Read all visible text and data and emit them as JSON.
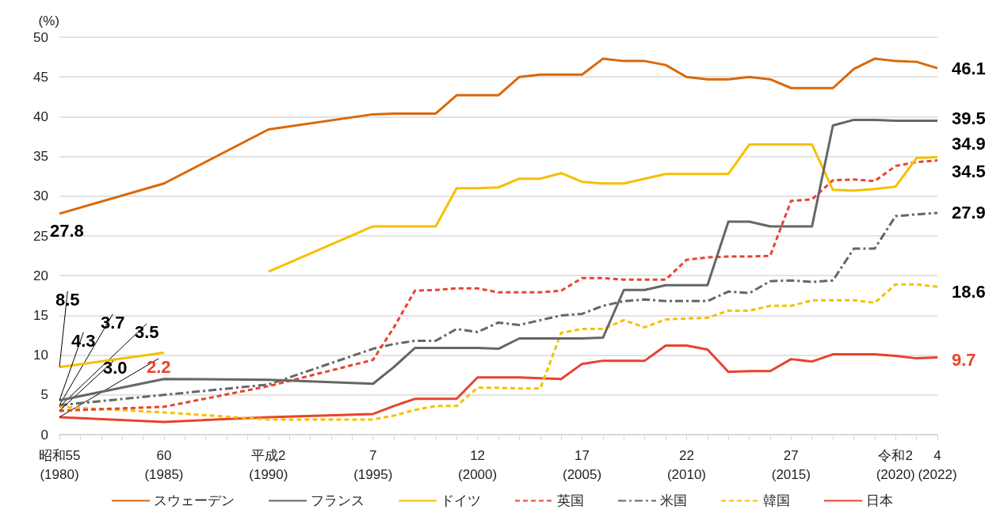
{
  "chart_data": {
    "type": "line",
    "ylabel": "(%)",
    "x": [
      "1980",
      "1985",
      "1990",
      "1995",
      "1996",
      "1997",
      "1998",
      "1999",
      "2000",
      "2001",
      "2002",
      "2003",
      "2004",
      "2005",
      "2006",
      "2007",
      "2008",
      "2009",
      "2010",
      "2011",
      "2012",
      "2013",
      "2014",
      "2015",
      "2016",
      "2017",
      "2018",
      "2019",
      "2020",
      "2021",
      "2022"
    ],
    "xlim": [
      "1980",
      "2022"
    ],
    "xticks": [
      {
        "value": "1980",
        "label": "昭和55\n(1980)"
      },
      {
        "value": "1985",
        "label": "60\n(1985)"
      },
      {
        "value": "1990",
        "label": "平成2\n(1990)"
      },
      {
        "value": "1995",
        "label": "7\n(1995)"
      },
      {
        "value": "2000",
        "label": "12\n(2000)"
      },
      {
        "value": "2005",
        "label": "17\n(2005)"
      },
      {
        "value": "2010",
        "label": "22\n(2010)"
      },
      {
        "value": "2015",
        "label": "27\n(2015)"
      },
      {
        "value": "2020",
        "label": "令和2\n(2020)"
      },
      {
        "value": "2022",
        "label": "4\n(2022)"
      }
    ],
    "ylim": [
      0,
      50
    ],
    "yticks": [
      0,
      5,
      10,
      15,
      20,
      25,
      30,
      35,
      40,
      45,
      50
    ],
    "grid": "y",
    "legend": "bottom",
    "marker": "none",
    "series": [
      {
        "name": "スウェーデン",
        "color": "#d9680a",
        "line_style": "solid",
        "values": [
          27.8,
          31.6,
          38.4,
          40.3,
          40.4,
          40.4,
          40.4,
          42.7,
          42.7,
          42.7,
          45.0,
          45.3,
          45.3,
          45.3,
          47.3,
          47.0,
          47.0,
          46.5,
          45.0,
          44.7,
          44.7,
          45.0,
          44.7,
          43.6,
          43.6,
          43.6,
          46.0,
          47.3,
          47.0,
          46.9,
          46.1
        ],
        "value_labels": [
          "27.8",
          null,
          null,
          null,
          null,
          null,
          null,
          null,
          null,
          null,
          null,
          null,
          null,
          null,
          null,
          null,
          null,
          null,
          null,
          null,
          null,
          null,
          null,
          null,
          null,
          null,
          null,
          null,
          null,
          null,
          "46.1"
        ]
      },
      {
        "name": "フランス",
        "color": "#666666",
        "line_style": "solid",
        "values": [
          4.3,
          7.0,
          6.9,
          6.4,
          8.5,
          10.9,
          10.9,
          10.9,
          10.9,
          10.8,
          12.1,
          12.1,
          12.1,
          12.1,
          12.2,
          18.2,
          18.2,
          18.8,
          18.8,
          18.8,
          26.8,
          26.8,
          26.2,
          26.2,
          26.2,
          38.9,
          39.6,
          39.6,
          39.5,
          39.5,
          39.5
        ],
        "value_labels": [
          "4.3",
          null,
          null,
          null,
          null,
          null,
          null,
          null,
          null,
          null,
          null,
          null,
          null,
          null,
          null,
          null,
          null,
          null,
          null,
          null,
          null,
          null,
          null,
          null,
          null,
          null,
          null,
          null,
          null,
          null,
          "39.5"
        ]
      },
      {
        "name": "ドイツ",
        "color": "#f5c000",
        "line_style": "solid",
        "x": [
          "1980",
          "1985",
          "1987",
          "1990",
          "1995",
          "1996",
          "1997",
          "1998",
          "1999",
          "2000",
          "2001",
          "2002",
          "2003",
          "2004",
          "2005",
          "2006",
          "2007",
          "2008",
          "2009",
          "2010",
          "2011",
          "2012",
          "2013",
          "2014",
          "2015",
          "2016",
          "2017",
          "2018",
          "2019",
          "2020",
          "2021",
          "2022"
        ],
        "values": [
          8.5,
          10.3,
          null,
          20.5,
          26.2,
          26.2,
          26.2,
          26.2,
          31.0,
          31.0,
          31.1,
          32.2,
          32.2,
          32.9,
          31.8,
          31.6,
          31.6,
          32.2,
          32.8,
          32.8,
          32.8,
          32.8,
          36.5,
          36.5,
          36.5,
          36.5,
          30.8,
          30.7,
          30.9,
          31.2,
          34.8,
          34.9
        ],
        "value_labels": [
          "8.5",
          null,
          null,
          null,
          null,
          null,
          null,
          null,
          null,
          null,
          null,
          null,
          null,
          null,
          null,
          null,
          null,
          null,
          null,
          null,
          null,
          null,
          null,
          null,
          null,
          null,
          null,
          null,
          null,
          null,
          null,
          "34.9"
        ]
      },
      {
        "name": "英国",
        "color": "#e8432f",
        "line_style": "dashed",
        "values": [
          3.0,
          3.5,
          6.1,
          9.4,
          13.5,
          18.1,
          18.2,
          18.4,
          18.4,
          17.9,
          17.9,
          17.9,
          18.1,
          19.7,
          19.7,
          19.5,
          19.5,
          19.5,
          22.0,
          22.3,
          22.4,
          22.4,
          22.5,
          29.4,
          29.6,
          32.0,
          32.1,
          31.9,
          33.8,
          34.3,
          34.5
        ],
        "value_labels": [
          "3.0",
          null,
          null,
          null,
          null,
          null,
          null,
          null,
          null,
          null,
          null,
          null,
          null,
          null,
          null,
          null,
          null,
          null,
          null,
          null,
          null,
          null,
          null,
          null,
          null,
          null,
          null,
          null,
          null,
          null,
          "34.5"
        ]
      },
      {
        "name": "米国",
        "color": "#666666",
        "line_style": "dashdot",
        "values": [
          3.7,
          5.0,
          6.3,
          10.8,
          11.4,
          11.8,
          11.8,
          13.3,
          12.9,
          14.1,
          13.8,
          14.4,
          15.0,
          15.2,
          16.2,
          16.8,
          17.0,
          16.8,
          16.8,
          16.8,
          18.0,
          17.8,
          19.3,
          19.4,
          19.2,
          19.4,
          23.4,
          23.4,
          27.5,
          27.7,
          27.9
        ],
        "value_labels": [
          "3.7",
          null,
          null,
          null,
          null,
          null,
          null,
          null,
          null,
          null,
          null,
          null,
          null,
          null,
          null,
          null,
          null,
          null,
          null,
          null,
          null,
          null,
          null,
          null,
          null,
          null,
          null,
          null,
          null,
          null,
          "27.9"
        ]
      },
      {
        "name": "韓国",
        "color": "#f5c000",
        "line_style": "dashed",
        "values": [
          3.5,
          2.8,
          1.9,
          1.9,
          2.4,
          3.1,
          3.6,
          3.6,
          5.9,
          5.9,
          5.8,
          5.8,
          12.8,
          13.3,
          13.3,
          14.4,
          13.5,
          14.5,
          14.6,
          14.7,
          15.6,
          15.6,
          16.2,
          16.2,
          16.9,
          16.9,
          16.9,
          16.6,
          18.9,
          18.9,
          18.6
        ],
        "value_labels": [
          "3.5",
          null,
          null,
          null,
          null,
          null,
          null,
          null,
          null,
          null,
          null,
          null,
          null,
          null,
          null,
          null,
          null,
          null,
          null,
          null,
          null,
          null,
          null,
          null,
          null,
          null,
          null,
          null,
          null,
          null,
          "18.6"
        ]
      },
      {
        "name": "日本",
        "color": "#e8432f",
        "line_style": "solid",
        "values": [
          2.2,
          1.6,
          2.2,
          2.6,
          3.6,
          4.5,
          4.5,
          4.5,
          7.2,
          7.2,
          7.2,
          7.1,
          7.0,
          8.9,
          9.3,
          9.3,
          9.3,
          11.2,
          11.2,
          10.7,
          7.9,
          8.0,
          8.0,
          9.5,
          9.2,
          10.1,
          10.1,
          10.1,
          9.9,
          9.6,
          9.7
        ],
        "value_labels": [
          "2.2",
          null,
          null,
          null,
          null,
          null,
          null,
          null,
          null,
          null,
          null,
          null,
          null,
          null,
          null,
          null,
          null,
          null,
          null,
          null,
          null,
          null,
          null,
          null,
          null,
          null,
          null,
          null,
          null,
          null,
          "9.7"
        ]
      }
    ]
  }
}
